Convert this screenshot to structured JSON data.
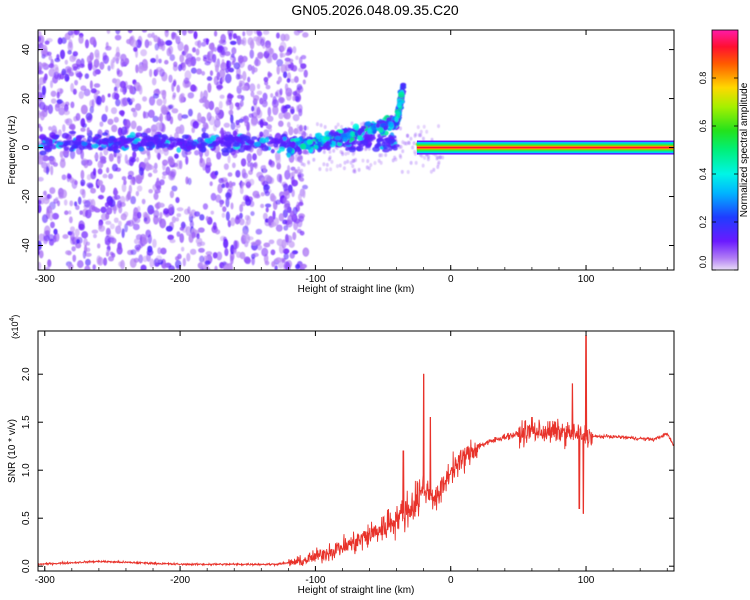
{
  "title": "GN05.2026.048.09.35.C20",
  "colors": {
    "spectral_low": "#6a1aff",
    "snr_line": "#e8322a",
    "axis": "#000000"
  },
  "chart_data": [
    {
      "type": "heatmap",
      "xlabel": "Height of straight line (km)",
      "ylabel": "Frequency (Hz)",
      "xlim": [
        -305,
        165
      ],
      "ylim": [
        -50,
        48
      ],
      "x_ticks": [
        -300,
        -200,
        -100,
        0,
        100
      ],
      "x_tick_labels": [
        "-300",
        "-200",
        "-100",
        "0",
        "100"
      ],
      "y_ticks": [
        -40,
        -20,
        0,
        20,
        40
      ],
      "y_tick_labels": [
        "-40",
        "-20",
        "0",
        "20",
        "40"
      ],
      "colorbar": {
        "label": "Normalized spectral amplitude",
        "range": [
          0,
          1
        ],
        "ticks": [
          0.0,
          0.2,
          0.4,
          0.6,
          0.8
        ],
        "tick_labels": [
          "0.0",
          "0.2",
          "0.4",
          "0.6",
          "0.8"
        ]
      },
      "features": [
        {
          "name": "broadband noise",
          "x_range": [
            -305,
            -115
          ],
          "freq_range": [
            -50,
            48
          ],
          "amplitude": 0.08
        },
        {
          "name": "diffuse fringe",
          "x_range": [
            -115,
            165
          ],
          "freq_range": [
            -10,
            10
          ],
          "amplitude": 0.05
        },
        {
          "name": "low-frequency band",
          "x_range": [
            -305,
            -40
          ],
          "center_hz": 2,
          "amplitude": 0.2
        },
        {
          "name": "rising branch",
          "points": [
            [
              -120,
              0
            ],
            [
              -90,
              3
            ],
            [
              -60,
              8
            ],
            [
              -40,
              10
            ],
            [
              -35,
              25
            ]
          ],
          "amplitude": 0.35
        },
        {
          "name": "stable tone",
          "x_range": [
            -25,
            165
          ],
          "center_hz": 0,
          "amplitude": 0.95
        }
      ]
    },
    {
      "type": "line",
      "xlabel": "Height of straight line (km)",
      "ylabel": "SNR (10 * v/v)",
      "scale_label_prefix": "(x10",
      "scale_label_exp": "4",
      "scale_label_suffix": ")",
      "xlim": [
        -305,
        165
      ],
      "ylim": [
        -0.05,
        2.45
      ],
      "x_ticks": [
        -300,
        -200,
        -100,
        0,
        100
      ],
      "x_tick_labels": [
        "-300",
        "-200",
        "-100",
        "0",
        "100"
      ],
      "y_ticks": [
        0.0,
        0.5,
        1.0,
        1.5,
        2.0
      ],
      "y_tick_labels": [
        "0.0",
        "0.5",
        "1.0",
        "1.5",
        "2.0"
      ],
      "series": [
        {
          "x": [
            -305,
            -260,
            -200,
            -130,
            -110,
            -90,
            -70,
            -50,
            -30,
            -20,
            -10,
            0,
            20,
            40,
            60,
            80,
            100,
            120,
            150,
            160,
            165
          ],
          "y": [
            0.02,
            0.05,
            0.02,
            0.02,
            0.05,
            0.15,
            0.25,
            0.4,
            0.6,
            0.8,
            0.7,
            1.0,
            1.25,
            1.35,
            1.4,
            1.4,
            1.35,
            1.35,
            1.32,
            1.38,
            1.25
          ],
          "spikes": [
            {
              "x": -20,
              "y": 2.0
            },
            {
              "x": -15,
              "y": 1.55
            },
            {
              "x": -35,
              "y": 1.2
            },
            {
              "x": 60,
              "y": 1.55
            },
            {
              "x": 75,
              "y": 1.45
            },
            {
              "x": 90,
              "y": 1.9
            },
            {
              "x": 100,
              "y": 2.4
            },
            {
              "x": 95,
              "y": 0.6
            },
            {
              "x": 98,
              "y": 0.55
            }
          ]
        }
      ]
    }
  ]
}
